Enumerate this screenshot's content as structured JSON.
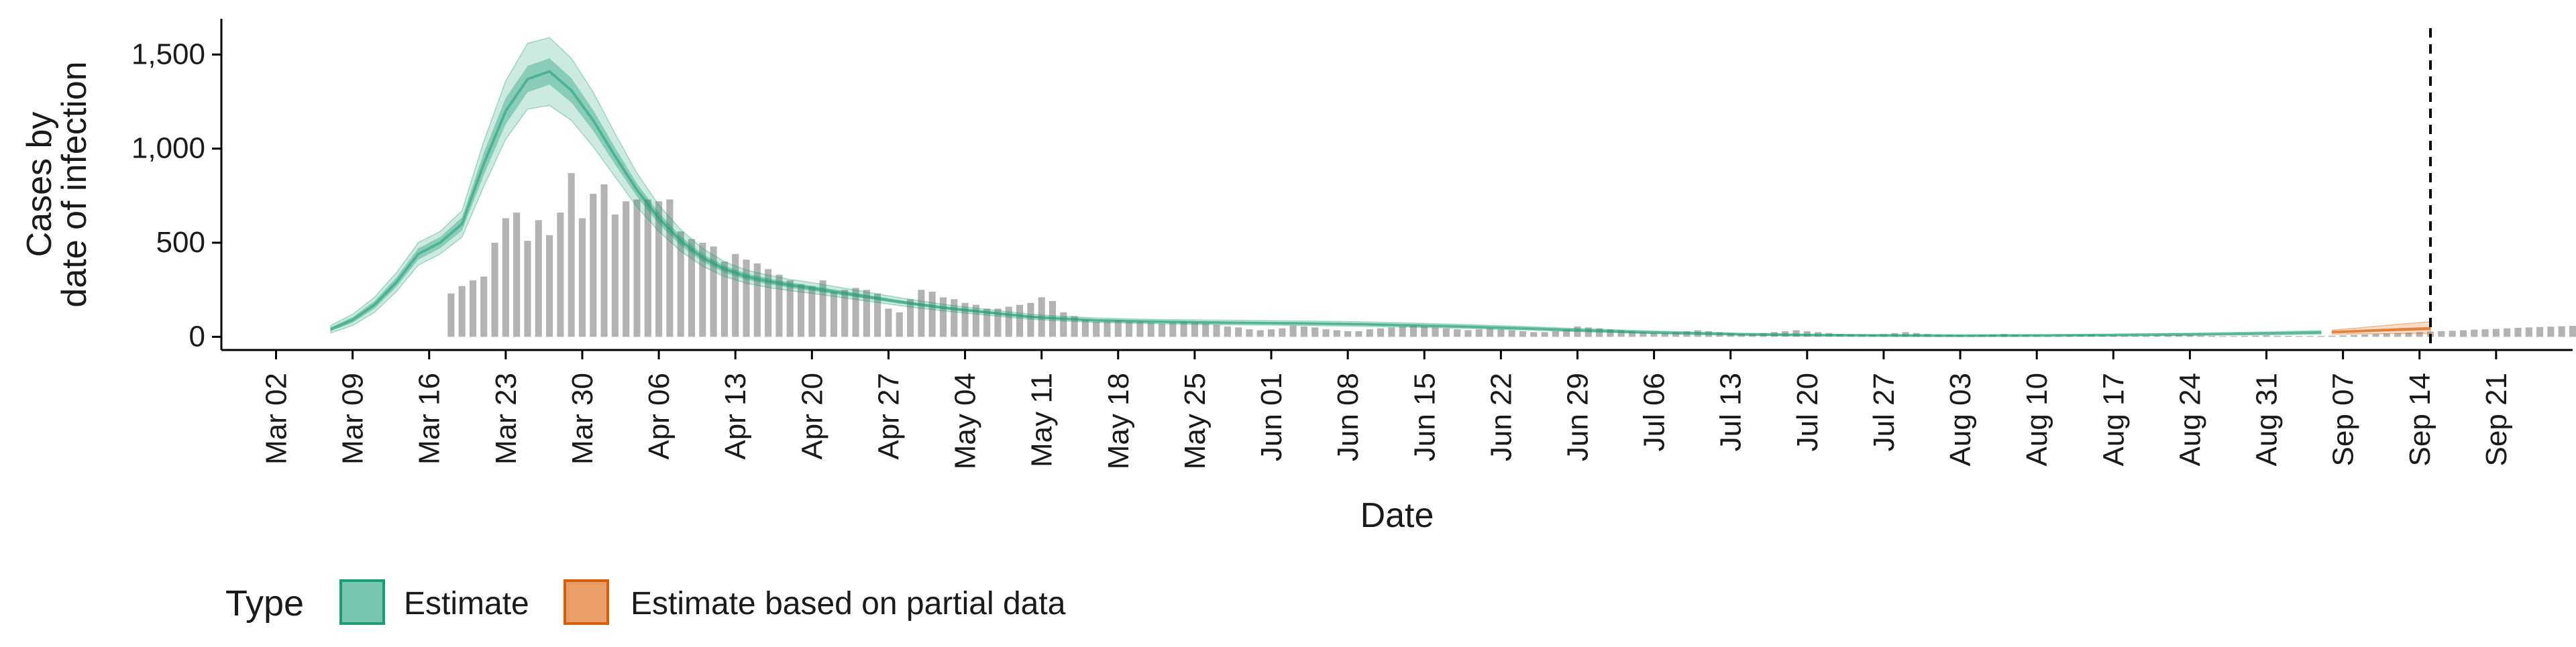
{
  "chart_data": {
    "type": "area",
    "xlabel": "Date",
    "ylabel_lines": [
      "Cases by",
      "date of infection"
    ],
    "ylim": [
      -70,
      1690
    ],
    "yticks": [
      0,
      500,
      1000,
      1500
    ],
    "ytick_labels": [
      "0",
      "500",
      "1,000",
      "1,500"
    ],
    "x_start": "2020-02-26",
    "x_end": "2020-09-28",
    "xticks": [
      "2020-03-02",
      "2020-03-09",
      "2020-03-16",
      "2020-03-23",
      "2020-03-30",
      "2020-04-06",
      "2020-04-13",
      "2020-04-20",
      "2020-04-27",
      "2020-05-04",
      "2020-05-11",
      "2020-05-18",
      "2020-05-25",
      "2020-06-01",
      "2020-06-08",
      "2020-06-15",
      "2020-06-22",
      "2020-06-29",
      "2020-07-06",
      "2020-07-13",
      "2020-07-20",
      "2020-07-27",
      "2020-08-03",
      "2020-08-10",
      "2020-08-17",
      "2020-08-24",
      "2020-08-31",
      "2020-09-07",
      "2020-09-14",
      "2020-09-21"
    ],
    "xtick_labels": [
      "Mar 02",
      "Mar 09",
      "Mar 16",
      "Mar 23",
      "Mar 30",
      "Apr 06",
      "Apr 13",
      "Apr 20",
      "Apr 27",
      "May 04",
      "May 11",
      "May 18",
      "May 25",
      "Jun 01",
      "Jun 08",
      "Jun 15",
      "Jun 22",
      "Jun 29",
      "Jul 06",
      "Jul 13",
      "Jul 20",
      "Jul 27",
      "Aug 03",
      "Aug 10",
      "Aug 17",
      "Aug 24",
      "Aug 31",
      "Sep 07",
      "Sep 14",
      "Sep 21"
    ],
    "vline_date": "2020-09-15",
    "legend_title": "Type",
    "legend_position": "bottom",
    "series": [
      {
        "name": "Estimate",
        "color": "#1b9e77",
        "points": [
          [
            "2020-03-07",
            40,
            30,
            50,
            20,
            60
          ],
          [
            "2020-03-09",
            90,
            75,
            105,
            60,
            120
          ],
          [
            "2020-03-11",
            170,
            150,
            190,
            130,
            210
          ],
          [
            "2020-03-13",
            290,
            265,
            315,
            240,
            340
          ],
          [
            "2020-03-15",
            440,
            410,
            470,
            380,
            500
          ],
          [
            "2020-03-17",
            500,
            470,
            530,
            440,
            560
          ],
          [
            "2020-03-19",
            600,
            565,
            635,
            530,
            670
          ],
          [
            "2020-03-21",
            920,
            860,
            980,
            800,
            1040
          ],
          [
            "2020-03-23",
            1200,
            1130,
            1270,
            1050,
            1360
          ],
          [
            "2020-03-25",
            1370,
            1300,
            1440,
            1210,
            1560
          ],
          [
            "2020-03-27",
            1410,
            1340,
            1480,
            1230,
            1590
          ],
          [
            "2020-03-29",
            1310,
            1245,
            1375,
            1150,
            1480
          ],
          [
            "2020-03-31",
            1150,
            1095,
            1205,
            1010,
            1300
          ],
          [
            "2020-04-02",
            960,
            915,
            1005,
            850,
            1080
          ],
          [
            "2020-04-04",
            780,
            745,
            815,
            690,
            870
          ],
          [
            "2020-04-06",
            630,
            600,
            660,
            560,
            700
          ],
          [
            "2020-04-08",
            510,
            485,
            535,
            455,
            570
          ],
          [
            "2020-04-10",
            420,
            400,
            440,
            375,
            470
          ],
          [
            "2020-04-12",
            360,
            342,
            378,
            320,
            400
          ],
          [
            "2020-04-14",
            320,
            304,
            336,
            285,
            355
          ],
          [
            "2020-04-16",
            295,
            280,
            310,
            262,
            328
          ],
          [
            "2020-04-18",
            275,
            261,
            289,
            245,
            305
          ],
          [
            "2020-04-20",
            258,
            245,
            271,
            230,
            288
          ],
          [
            "2020-04-22",
            240,
            228,
            252,
            214,
            268
          ],
          [
            "2020-04-24",
            222,
            211,
            233,
            198,
            248
          ],
          [
            "2020-04-26",
            204,
            194,
            214,
            182,
            228
          ],
          [
            "2020-04-28",
            186,
            177,
            195,
            166,
            208
          ],
          [
            "2020-04-30",
            170,
            162,
            178,
            151,
            190
          ],
          [
            "2020-05-02",
            155,
            147,
            163,
            138,
            173
          ],
          [
            "2020-05-04",
            142,
            135,
            149,
            126,
            158
          ],
          [
            "2020-05-06",
            130,
            123,
            137,
            115,
            146
          ],
          [
            "2020-05-08",
            118,
            112,
            124,
            104,
            133
          ],
          [
            "2020-05-10",
            106,
            100,
            112,
            93,
            120
          ],
          [
            "2020-05-13",
            96,
            91,
            101,
            84,
            109
          ],
          [
            "2020-05-16",
            88,
            83,
            93,
            77,
            100
          ],
          [
            "2020-05-20",
            82,
            77,
            87,
            71,
            94
          ],
          [
            "2020-05-25",
            77,
            72,
            82,
            66,
            90
          ],
          [
            "2020-05-30",
            74,
            69,
            79,
            63,
            87
          ],
          [
            "2020-06-04",
            71,
            66,
            76,
            60,
            84
          ],
          [
            "2020-06-09",
            67,
            62,
            72,
            56,
            80
          ],
          [
            "2020-06-14",
            61,
            57,
            65,
            51,
            73
          ],
          [
            "2020-06-19",
            54,
            50,
            58,
            45,
            65
          ],
          [
            "2020-06-24",
            45,
            41,
            49,
            37,
            55
          ],
          [
            "2020-06-29",
            35,
            32,
            38,
            28,
            44
          ],
          [
            "2020-07-04",
            26,
            23,
            29,
            20,
            34
          ],
          [
            "2020-07-09",
            19,
            17,
            21,
            14,
            26
          ],
          [
            "2020-07-14",
            13,
            11,
            15,
            9,
            19
          ],
          [
            "2020-07-20",
            9,
            8,
            10,
            6,
            14
          ],
          [
            "2020-07-27",
            7,
            6,
            8,
            4,
            11
          ],
          [
            "2020-08-03",
            6,
            5,
            7,
            3,
            10
          ],
          [
            "2020-08-10",
            7,
            6,
            8,
            4,
            11
          ],
          [
            "2020-08-17",
            9,
            8,
            10,
            5,
            14
          ],
          [
            "2020-08-24",
            13,
            11,
            15,
            8,
            19
          ],
          [
            "2020-08-31",
            18,
            16,
            20,
            11,
            26
          ],
          [
            "2020-09-05",
            23,
            20,
            26,
            14,
            33
          ]
        ]
      },
      {
        "name": "Estimate based on partial data",
        "color": "#d95f02",
        "points": [
          [
            "2020-09-06",
            25,
            21,
            29,
            14,
            36
          ],
          [
            "2020-09-08",
            29,
            24,
            34,
            15,
            45
          ],
          [
            "2020-09-10",
            34,
            28,
            40,
            16,
            56
          ],
          [
            "2020-09-12",
            38,
            31,
            46,
            17,
            66
          ],
          [
            "2020-09-14",
            42,
            34,
            51,
            18,
            76
          ],
          [
            "2020-09-15",
            44,
            35,
            53,
            19,
            80
          ]
        ]
      }
    ],
    "reported_cases": {
      "color": "#b3b3b3",
      "start_date": "2020-03-18",
      "values": [
        230,
        270,
        300,
        320,
        500,
        630,
        660,
        510,
        620,
        540,
        660,
        870,
        630,
        760,
        810,
        650,
        720,
        730,
        730,
        720,
        730,
        560,
        520,
        500,
        480,
        400,
        440,
        410,
        390,
        360,
        330,
        300,
        280,
        270,
        300,
        240,
        250,
        260,
        250,
        230,
        150,
        130,
        200,
        250,
        240,
        210,
        200,
        180,
        170,
        150,
        150,
        160,
        170,
        180,
        210,
        190,
        130,
        110,
        90,
        80,
        80,
        90,
        80,
        80,
        75,
        70,
        75,
        80,
        75,
        70,
        65,
        55,
        50,
        40,
        35,
        40,
        45,
        60,
        55,
        50,
        40,
        35,
        30,
        30,
        40,
        45,
        50,
        55,
        60,
        55,
        50,
        45,
        40,
        35,
        40,
        45,
        40,
        35,
        30,
        25,
        25,
        30,
        40,
        55,
        50,
        45,
        40,
        35,
        30,
        25,
        20,
        20,
        25,
        30,
        35,
        30,
        25,
        20,
        15,
        15,
        20,
        25,
        30,
        35,
        30,
        25,
        20,
        15,
        12,
        10,
        12,
        15,
        20,
        25,
        20,
        15,
        12,
        10,
        8,
        8,
        10,
        12,
        15,
        12,
        10,
        8,
        6,
        6,
        8,
        10,
        12,
        10,
        8,
        6,
        5,
        5,
        6,
        8,
        10,
        8,
        6,
        5,
        4,
        4,
        5,
        6,
        8,
        6,
        5,
        4,
        4,
        5,
        6,
        8,
        10,
        12,
        15,
        18,
        20,
        22,
        25,
        28,
        30,
        32,
        35,
        38,
        40,
        42,
        45,
        48,
        50,
        52,
        54,
        56,
        58,
        60,
        62
      ]
    }
  }
}
